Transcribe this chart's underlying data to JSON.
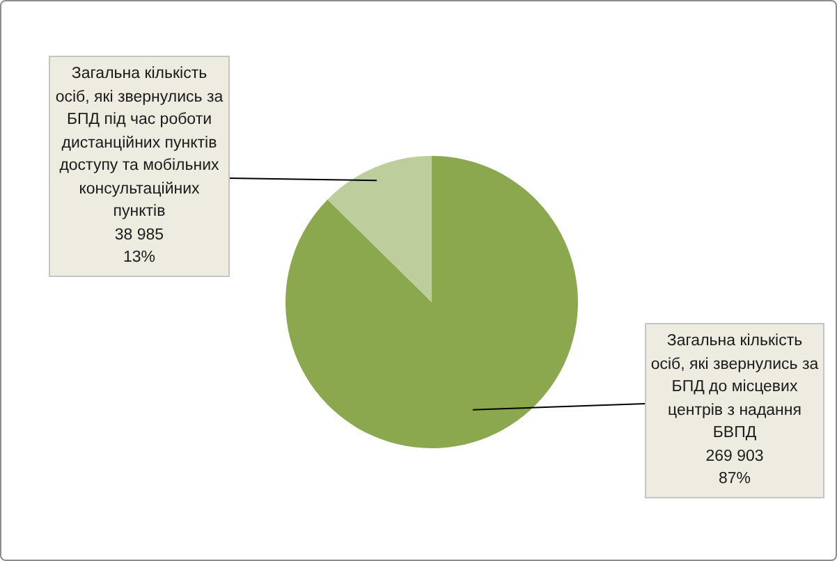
{
  "chart_data": {
    "type": "pie",
    "categories": [
      "Загальна кількість осіб, які звернулись за БПД до місцевих центрів з надання БВПД",
      "Загальна кількість осіб, які звернулись за БПД під час роботи дистанційних пунктів доступу та мобільних консультаційних пунктів"
    ],
    "values": [
      269903,
      38985
    ],
    "colors": [
      "#8ba84f",
      "#bdcd9b"
    ],
    "value_labels": [
      "269 903\n87%",
      "38 985\n13%"
    ]
  }
}
